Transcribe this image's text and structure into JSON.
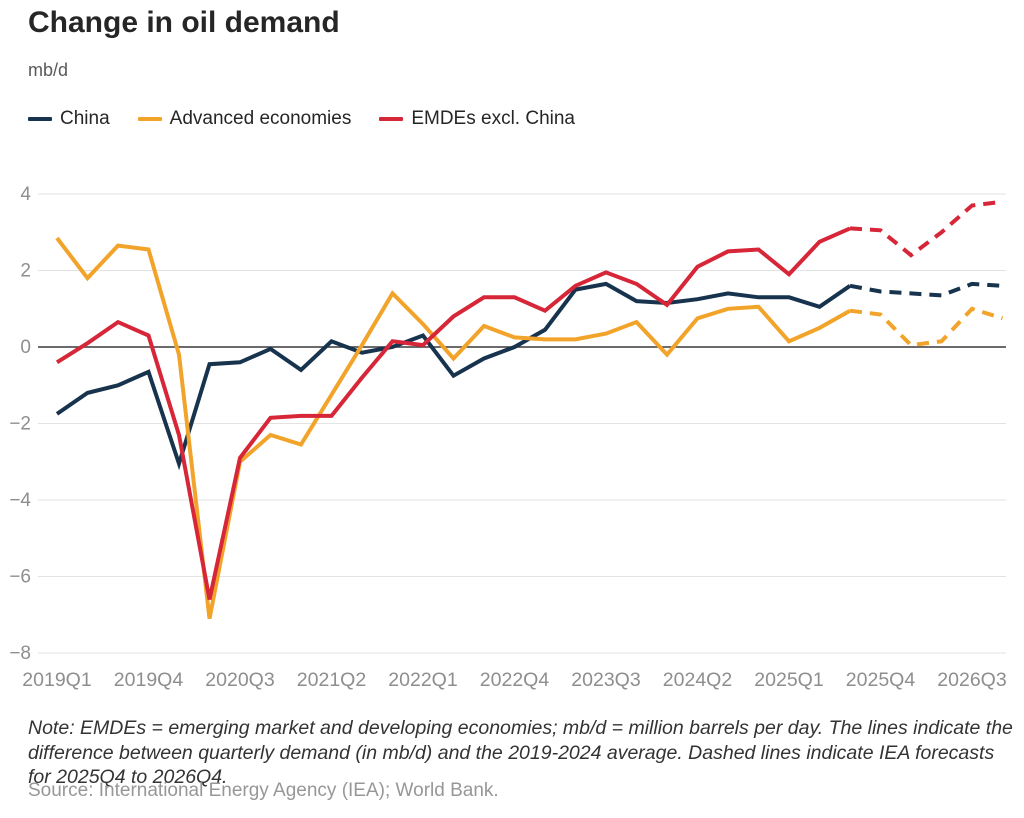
{
  "header": {
    "title": "Change in oil demand",
    "unit": "mb/d"
  },
  "note": {
    "text": "Note: EMDEs = emerging market and developing economies; mb/d = million barrels per day. The lines indicate the difference between quarterly demand (in mb/d) and the 2019-2024 average. Dashed lines indicate IEA forecasts for 2025Q4 to 2026Q4."
  },
  "source": {
    "text": "Source: International Energy Agency (IEA); World Bank."
  },
  "chart_data": {
    "type": "line",
    "title": "Change in oil demand",
    "ylabel": "mb/d",
    "ylim": [
      -8,
      4
    ],
    "grid": "horizontal",
    "legend_position": "top-left",
    "forecast_note": "dashed from 2025Q4 to 2026Q4",
    "solid_until_index": 26,
    "quarters": [
      "2019Q1",
      "2019Q2",
      "2019Q3",
      "2019Q4",
      "2020Q1",
      "2020Q2",
      "2020Q3",
      "2020Q4",
      "2021Q1",
      "2021Q2",
      "2021Q3",
      "2021Q4",
      "2022Q1",
      "2022Q2",
      "2022Q3",
      "2022Q4",
      "2023Q1",
      "2023Q2",
      "2023Q3",
      "2023Q4",
      "2024Q1",
      "2024Q2",
      "2024Q3",
      "2024Q4",
      "2025Q1",
      "2025Q2",
      "2025Q3",
      "2025Q4",
      "2026Q1",
      "2026Q2",
      "2026Q3",
      "2026Q4"
    ],
    "x_tick_indices": [
      0,
      3,
      6,
      9,
      12,
      15,
      18,
      21,
      24,
      27,
      30
    ],
    "x_tick_labels": [
      "2019Q1",
      "2019Q4",
      "2020Q3",
      "2021Q2",
      "2022Q1",
      "2022Q4",
      "2023Q3",
      "2024Q2",
      "2025Q1",
      "2025Q4",
      "2026Q3"
    ],
    "y_ticks": [
      {
        "value": 4,
        "label": "4"
      },
      {
        "value": 2,
        "label": "2"
      },
      {
        "value": 0,
        "label": "0"
      },
      {
        "value": -2,
        "label": "−2"
      },
      {
        "value": -4,
        "label": "−4"
      },
      {
        "value": -6,
        "label": "−6"
      },
      {
        "value": -8,
        "label": "−8"
      }
    ],
    "series": [
      {
        "name": "China",
        "color": "#17334d",
        "values": [
          -1.75,
          -1.2,
          -1.0,
          -0.65,
          -3.05,
          -0.45,
          -0.4,
          -0.05,
          -0.6,
          0.15,
          -0.15,
          0.0,
          0.3,
          -0.75,
          -0.3,
          0.0,
          0.45,
          1.5,
          1.65,
          1.2,
          1.15,
          1.25,
          1.4,
          1.3,
          1.3,
          1.05,
          1.6,
          1.45,
          1.4,
          1.35,
          1.65,
          1.6
        ]
      },
      {
        "name": "Advanced economies",
        "color": "#f2a32a",
        "values": [
          2.85,
          1.8,
          2.65,
          2.55,
          -0.2,
          -7.1,
          -3.0,
          -2.3,
          -2.55,
          -1.25,
          0.05,
          1.4,
          0.6,
          -0.3,
          0.55,
          0.25,
          0.2,
          0.2,
          0.35,
          0.65,
          -0.2,
          0.75,
          1.0,
          1.05,
          0.15,
          0.5,
          0.95,
          0.85,
          0.05,
          0.15,
          1.0,
          0.75
        ]
      },
      {
        "name": "EMDEs excl. China",
        "color": "#d62638",
        "values": [
          -0.4,
          0.1,
          0.65,
          0.3,
          -2.3,
          -6.6,
          -2.9,
          -1.85,
          -1.8,
          -1.8,
          -0.8,
          0.15,
          0.05,
          0.8,
          1.3,
          1.3,
          0.95,
          1.6,
          1.95,
          1.65,
          1.1,
          2.1,
          2.5,
          2.55,
          1.9,
          2.75,
          3.1,
          3.05,
          2.4,
          3.0,
          3.7,
          3.8
        ]
      }
    ],
    "colors": {
      "gridline": "#e3e3e3",
      "zero_line": "#3a3a3a",
      "tick_text": "#8e8e8e"
    }
  }
}
